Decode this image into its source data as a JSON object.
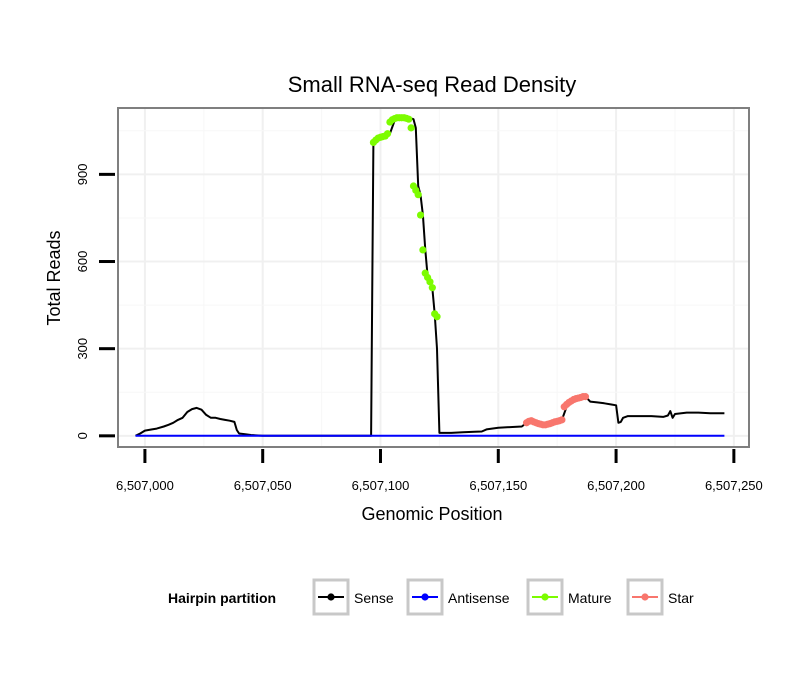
{
  "chart_data": {
    "type": "line",
    "title": "Small RNA-seq Read Density",
    "xlabel": "Genomic Position",
    "ylabel": "Total Reads",
    "xlim": [
      6506989,
      6507256
    ],
    "ylim": [
      -35,
      1125
    ],
    "x_ticks": [
      6507000,
      6507050,
      6507100,
      6507150,
      6507200,
      6507250
    ],
    "x_tick_labels": [
      "6,507,000",
      "6,507,050",
      "6,507,100",
      "6,507,150",
      "6,507,200",
      "6,507,250"
    ],
    "y_ticks": [
      0,
      300,
      600,
      900
    ],
    "y_tick_labels": [
      "0",
      "300",
      "600",
      "900"
    ],
    "grid": true,
    "legend": {
      "title": "Hairpin partition",
      "position": "bottom",
      "entries": [
        {
          "name": "Sense",
          "color": "#000000"
        },
        {
          "name": "Antisense",
          "color": "#0000ff"
        },
        {
          "name": "Mature",
          "color": "#7cfc00"
        },
        {
          "name": "Star",
          "color": "#f8766d"
        }
      ]
    },
    "series": [
      {
        "name": "Sense",
        "color": "#000000",
        "marker": "line",
        "x": [
          6506996,
          6506998,
          6507000,
          6507003,
          6507005,
          6507008,
          6507010,
          6507012,
          6507014,
          6507016,
          6507018,
          6507020,
          6507022,
          6507024,
          6507026,
          6507028,
          6507030,
          6507032,
          6507034,
          6507036,
          6507038,
          6507039,
          6507040,
          6507043,
          6507045,
          6507050,
          6507060,
          6507070,
          6507080,
          6507090,
          6507096,
          6507097,
          6507098,
          6507100,
          6507102,
          6507104,
          6507106,
          6507108,
          6507110,
          6507112,
          6507114,
          6507115,
          6507116,
          6507117,
          6507118,
          6507119,
          6507120,
          6507121,
          6507122,
          6507123,
          6507124,
          6507125,
          6507130,
          6507135,
          6507140,
          6507143,
          6507145,
          6507150,
          6507155,
          6507160,
          6507162,
          6507165,
          6507168,
          6507170,
          6507173,
          6507175,
          6507177,
          6507179,
          6507181,
          6507183,
          6507185,
          6507187,
          6507189,
          6507192,
          6507195,
          6507198,
          6507200,
          6507201,
          6507202,
          6507203,
          6507205,
          6507210,
          6507215,
          6507220,
          6507222,
          6507223,
          6507224,
          6507225,
          6507230,
          6507235,
          6507240,
          6507246
        ],
        "y": [
          0,
          8,
          18,
          22,
          25,
          32,
          38,
          45,
          55,
          62,
          82,
          92,
          96,
          90,
          72,
          62,
          62,
          58,
          55,
          52,
          48,
          20,
          8,
          5,
          3,
          0,
          0,
          0,
          0,
          0,
          0,
          1010,
          1025,
          1030,
          1035,
          1040,
          1085,
          1092,
          1095,
          1095,
          1090,
          1060,
          860,
          830,
          760,
          640,
          550,
          535,
          510,
          420,
          300,
          10,
          10,
          12,
          14,
          15,
          22,
          28,
          30,
          32,
          45,
          50,
          42,
          38,
          45,
          48,
          55,
          100,
          120,
          128,
          132,
          135,
          118,
          115,
          112,
          108,
          105,
          45,
          48,
          62,
          68,
          68,
          68,
          65,
          70,
          85,
          62,
          75,
          80,
          80,
          78,
          78
        ]
      },
      {
        "name": "Antisense",
        "color": "#0000ff",
        "marker": "line",
        "x": [
          6506996,
          6507246
        ],
        "y": [
          0,
          0
        ]
      },
      {
        "name": "Mature",
        "color": "#7cfc00",
        "marker": "point",
        "x": [
          6507097,
          6507098,
          6507099,
          6507100,
          6507101,
          6507102,
          6507103,
          6507104,
          6507105,
          6507106,
          6507107,
          6507108,
          6507109,
          6507110,
          6507111,
          6507112,
          6507113,
          6507114,
          6507115,
          6507116,
          6507117,
          6507118,
          6507119,
          6507120,
          6507121,
          6507122,
          6507123,
          6507124
        ],
        "y": [
          1010,
          1018,
          1025,
          1028,
          1030,
          1032,
          1040,
          1080,
          1088,
          1092,
          1095,
          1095,
          1095,
          1095,
          1093,
          1090,
          1060,
          860,
          845,
          830,
          760,
          640,
          560,
          545,
          530,
          510,
          420,
          410
        ]
      },
      {
        "name": "Star",
        "color": "#f8766d",
        "marker": "point",
        "x": [
          6507162,
          6507163,
          6507164,
          6507165,
          6507166,
          6507167,
          6507168,
          6507169,
          6507170,
          6507171,
          6507172,
          6507173,
          6507174,
          6507175,
          6507176,
          6507177,
          6507178,
          6507179,
          6507180,
          6507181,
          6507182,
          6507183,
          6507184,
          6507185,
          6507186,
          6507187
        ],
        "y": [
          45,
          50,
          52,
          48,
          45,
          42,
          40,
          38,
          38,
          40,
          42,
          45,
          48,
          50,
          52,
          55,
          100,
          108,
          115,
          120,
          125,
          128,
          130,
          132,
          135,
          135
        ]
      }
    ]
  }
}
